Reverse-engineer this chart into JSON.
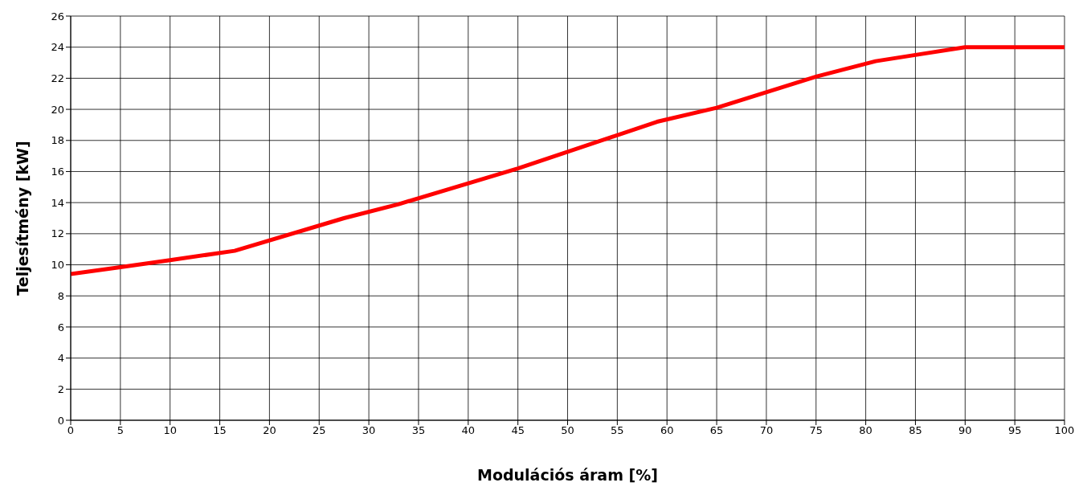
{
  "chart_data": {
    "type": "line",
    "xlabel": "Modulációs áram [%]",
    "ylabel": "Teljesítmény [kW]",
    "x": [
      0,
      5,
      10,
      16.5,
      27.5,
      33,
      45,
      59,
      65,
      75,
      81,
      85,
      90,
      100
    ],
    "series": [
      {
        "color": "#ff0000",
        "values": [
          9.4,
          9.85,
          10.3,
          10.9,
          13,
          13.9,
          16.2,
          19.2,
          20.1,
          22.1,
          23.1,
          23.5,
          24,
          24
        ]
      }
    ],
    "xlim": [
      0,
      100
    ],
    "xticks": [
      0,
      5,
      10,
      15,
      20,
      25,
      30,
      35,
      40,
      45,
      50,
      55,
      60,
      65,
      70,
      75,
      80,
      85,
      90,
      95,
      100
    ],
    "ylim": [
      0,
      26
    ],
    "yticks": [
      0,
      2,
      4,
      6,
      8,
      10,
      12,
      14,
      16,
      18,
      20,
      22,
      24,
      26
    ],
    "grid": true,
    "marker": "none",
    "line_style": "solid"
  }
}
